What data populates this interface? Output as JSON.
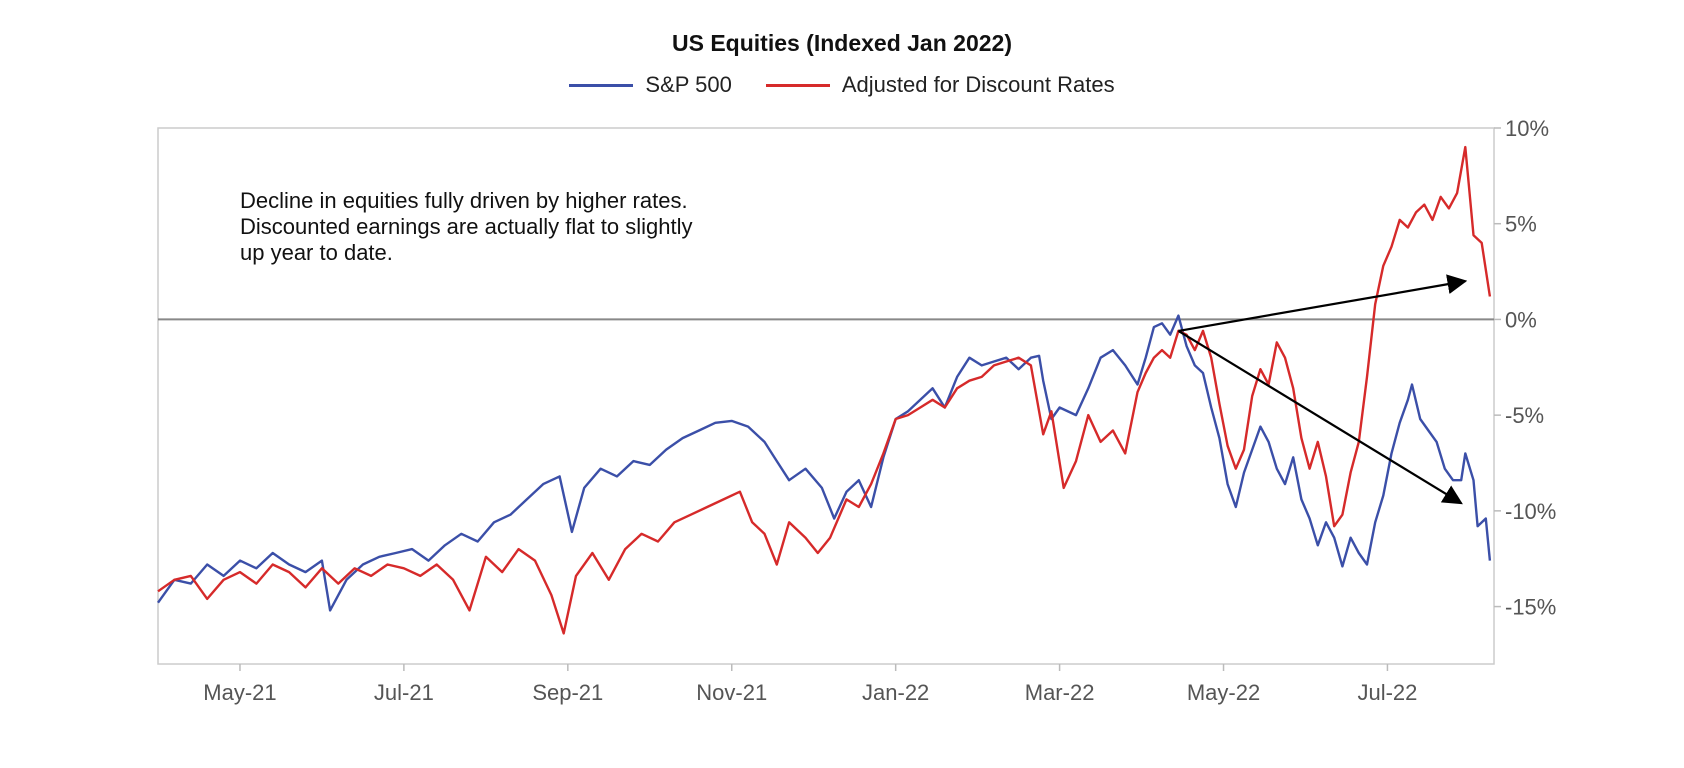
{
  "chart_data": {
    "type": "line",
    "title": "US Equities (Indexed Jan 2022)",
    "xlabel": "",
    "ylabel": "",
    "x_tick_labels": [
      "May-21",
      "Jul-21",
      "Sep-21",
      "Nov-21",
      "Jan-22",
      "Mar-22",
      "May-22",
      "Jul-22"
    ],
    "x_range_months": [
      -9.0,
      7.3
    ],
    "ylim": [
      -18,
      10
    ],
    "y_ticks": [
      10,
      5,
      0,
      -5,
      -10,
      -15
    ],
    "y_tick_labels": [
      "10%",
      "5%",
      "0%",
      "-5%",
      "-10%",
      "-15%"
    ],
    "y_axis_position": "right",
    "zero_line": 0,
    "grid": false,
    "legend_position": "top-center",
    "series": [
      {
        "name": "S&P 500",
        "color": "#3b4fa8",
        "points": [
          [
            -9.0,
            -14.8
          ],
          [
            -8.8,
            -13.6
          ],
          [
            -8.6,
            -13.8
          ],
          [
            -8.4,
            -12.8
          ],
          [
            -8.2,
            -13.4
          ],
          [
            -8.0,
            -12.6
          ],
          [
            -7.8,
            -13.0
          ],
          [
            -7.6,
            -12.2
          ],
          [
            -7.4,
            -12.8
          ],
          [
            -7.2,
            -13.2
          ],
          [
            -7.0,
            -12.6
          ],
          [
            -6.9,
            -15.2
          ],
          [
            -6.7,
            -13.6
          ],
          [
            -6.5,
            -12.8
          ],
          [
            -6.3,
            -12.4
          ],
          [
            -6.1,
            -12.2
          ],
          [
            -5.9,
            -12.0
          ],
          [
            -5.7,
            -12.6
          ],
          [
            -5.5,
            -11.8
          ],
          [
            -5.3,
            -11.2
          ],
          [
            -5.1,
            -11.6
          ],
          [
            -4.9,
            -10.6
          ],
          [
            -4.7,
            -10.2
          ],
          [
            -4.5,
            -9.4
          ],
          [
            -4.3,
            -8.6
          ],
          [
            -4.1,
            -8.2
          ],
          [
            -3.95,
            -11.1
          ],
          [
            -3.8,
            -8.8
          ],
          [
            -3.6,
            -7.8
          ],
          [
            -3.4,
            -8.2
          ],
          [
            -3.2,
            -7.4
          ],
          [
            -3.0,
            -7.6
          ],
          [
            -2.8,
            -6.8
          ],
          [
            -2.6,
            -6.2
          ],
          [
            -2.4,
            -5.8
          ],
          [
            -2.2,
            -5.4
          ],
          [
            -2.0,
            -5.3
          ],
          [
            -1.8,
            -5.6
          ],
          [
            -1.6,
            -6.4
          ],
          [
            -1.45,
            -7.4
          ],
          [
            -1.3,
            -8.4
          ],
          [
            -1.1,
            -7.8
          ],
          [
            -0.9,
            -8.8
          ],
          [
            -0.75,
            -10.4
          ],
          [
            -0.6,
            -9.0
          ],
          [
            -0.45,
            -8.4
          ],
          [
            -0.3,
            -9.8
          ],
          [
            -0.15,
            -7.2
          ],
          [
            0.0,
            -5.2
          ],
          [
            0.15,
            -4.8
          ],
          [
            0.3,
            -4.2
          ],
          [
            0.45,
            -3.6
          ],
          [
            0.6,
            -4.6
          ],
          [
            0.75,
            -3.0
          ],
          [
            0.9,
            -2.0
          ],
          [
            1.05,
            -2.4
          ],
          [
            1.2,
            -2.2
          ],
          [
            1.35,
            -2.0
          ],
          [
            1.5,
            -2.6
          ],
          [
            1.65,
            -2.0
          ],
          [
            1.75,
            -1.9
          ],
          [
            1.8,
            -3.2
          ],
          [
            1.9,
            -5.2
          ],
          [
            2.0,
            -4.6
          ],
          [
            2.2,
            -5.0
          ],
          [
            2.35,
            -3.6
          ],
          [
            2.5,
            -2.0
          ],
          [
            2.65,
            -1.6
          ],
          [
            2.8,
            -2.4
          ],
          [
            2.95,
            -3.4
          ],
          [
            3.05,
            -2.0
          ],
          [
            3.15,
            -0.4
          ],
          [
            3.25,
            -0.2
          ],
          [
            3.35,
            -0.8
          ],
          [
            3.45,
            0.2
          ],
          [
            3.55,
            -1.4
          ],
          [
            3.65,
            -2.4
          ],
          [
            3.75,
            -2.8
          ],
          [
            3.85,
            -4.6
          ],
          [
            3.95,
            -6.2
          ],
          [
            4.05,
            -8.6
          ],
          [
            4.15,
            -9.8
          ],
          [
            4.25,
            -8.0
          ],
          [
            4.35,
            -6.8
          ],
          [
            4.45,
            -5.6
          ],
          [
            4.55,
            -6.4
          ],
          [
            4.65,
            -7.8
          ],
          [
            4.75,
            -8.6
          ],
          [
            4.85,
            -7.2
          ],
          [
            4.95,
            -9.4
          ],
          [
            5.05,
            -10.4
          ],
          [
            5.15,
            -11.8
          ],
          [
            5.25,
            -10.6
          ],
          [
            5.35,
            -11.4
          ],
          [
            5.45,
            -12.9
          ],
          [
            5.55,
            -11.4
          ],
          [
            5.65,
            -12.2
          ],
          [
            5.75,
            -12.8
          ],
          [
            5.85,
            -10.6
          ],
          [
            5.95,
            -9.2
          ],
          [
            6.05,
            -7.0
          ],
          [
            6.15,
            -5.4
          ],
          [
            6.25,
            -4.2
          ],
          [
            6.3,
            -3.4
          ],
          [
            6.4,
            -5.2
          ],
          [
            6.5,
            -5.8
          ],
          [
            6.6,
            -6.4
          ],
          [
            6.7,
            -7.8
          ],
          [
            6.8,
            -8.4
          ],
          [
            6.9,
            -8.4
          ],
          [
            6.95,
            -7.0
          ],
          [
            7.05,
            -8.4
          ],
          [
            7.1,
            -10.8
          ],
          [
            7.2,
            -10.4
          ],
          [
            7.25,
            -12.6
          ]
        ]
      },
      {
        "name": "Adjusted for Discount Rates",
        "color": "#d62a2a",
        "points": [
          [
            -9.0,
            -14.2
          ],
          [
            -8.8,
            -13.6
          ],
          [
            -8.6,
            -13.4
          ],
          [
            -8.4,
            -14.6
          ],
          [
            -8.2,
            -13.6
          ],
          [
            -8.0,
            -13.2
          ],
          [
            -7.8,
            -13.8
          ],
          [
            -7.6,
            -12.8
          ],
          [
            -7.4,
            -13.2
          ],
          [
            -7.2,
            -14.0
          ],
          [
            -7.0,
            -13.0
          ],
          [
            -6.8,
            -13.8
          ],
          [
            -6.6,
            -13.0
          ],
          [
            -6.4,
            -13.4
          ],
          [
            -6.2,
            -12.8
          ],
          [
            -6.0,
            -13.0
          ],
          [
            -5.8,
            -13.4
          ],
          [
            -5.6,
            -12.8
          ],
          [
            -5.4,
            -13.6
          ],
          [
            -5.2,
            -15.2
          ],
          [
            -5.0,
            -12.4
          ],
          [
            -4.8,
            -13.2
          ],
          [
            -4.6,
            -12.0
          ],
          [
            -4.4,
            -12.6
          ],
          [
            -4.2,
            -14.4
          ],
          [
            -4.05,
            -16.4
          ],
          [
            -3.9,
            -13.4
          ],
          [
            -3.7,
            -12.2
          ],
          [
            -3.5,
            -13.6
          ],
          [
            -3.3,
            -12.0
          ],
          [
            -3.1,
            -11.2
          ],
          [
            -2.9,
            -11.6
          ],
          [
            -2.7,
            -10.6
          ],
          [
            -2.5,
            -10.2
          ],
          [
            -2.3,
            -9.8
          ],
          [
            -2.1,
            -9.4
          ],
          [
            -1.9,
            -9.0
          ],
          [
            -1.75,
            -10.6
          ],
          [
            -1.6,
            -11.2
          ],
          [
            -1.45,
            -12.8
          ],
          [
            -1.3,
            -10.6
          ],
          [
            -1.1,
            -11.4
          ],
          [
            -0.95,
            -12.2
          ],
          [
            -0.8,
            -11.4
          ],
          [
            -0.6,
            -9.4
          ],
          [
            -0.45,
            -9.8
          ],
          [
            -0.3,
            -8.6
          ],
          [
            -0.15,
            -7.0
          ],
          [
            0.0,
            -5.2
          ],
          [
            0.15,
            -5.0
          ],
          [
            0.3,
            -4.6
          ],
          [
            0.45,
            -4.2
          ],
          [
            0.6,
            -4.6
          ],
          [
            0.75,
            -3.6
          ],
          [
            0.9,
            -3.2
          ],
          [
            1.05,
            -3.0
          ],
          [
            1.2,
            -2.4
          ],
          [
            1.35,
            -2.2
          ],
          [
            1.5,
            -2.0
          ],
          [
            1.65,
            -2.4
          ],
          [
            1.8,
            -6.0
          ],
          [
            1.9,
            -4.8
          ],
          [
            2.05,
            -8.8
          ],
          [
            2.2,
            -7.4
          ],
          [
            2.35,
            -5.0
          ],
          [
            2.5,
            -6.4
          ],
          [
            2.65,
            -5.8
          ],
          [
            2.8,
            -7.0
          ],
          [
            2.95,
            -3.8
          ],
          [
            3.05,
            -2.8
          ],
          [
            3.15,
            -2.0
          ],
          [
            3.25,
            -1.6
          ],
          [
            3.35,
            -2.0
          ],
          [
            3.45,
            -0.6
          ],
          [
            3.55,
            -0.8
          ],
          [
            3.65,
            -1.6
          ],
          [
            3.75,
            -0.6
          ],
          [
            3.85,
            -2.0
          ],
          [
            3.95,
            -4.4
          ],
          [
            4.05,
            -6.6
          ],
          [
            4.15,
            -7.8
          ],
          [
            4.25,
            -6.8
          ],
          [
            4.35,
            -4.0
          ],
          [
            4.45,
            -2.6
          ],
          [
            4.55,
            -3.4
          ],
          [
            4.65,
            -1.2
          ],
          [
            4.75,
            -2.0
          ],
          [
            4.85,
            -3.6
          ],
          [
            4.95,
            -6.2
          ],
          [
            5.05,
            -7.8
          ],
          [
            5.15,
            -6.4
          ],
          [
            5.25,
            -8.2
          ],
          [
            5.35,
            -10.8
          ],
          [
            5.45,
            -10.2
          ],
          [
            5.55,
            -8.0
          ],
          [
            5.65,
            -6.4
          ],
          [
            5.75,
            -3.0
          ],
          [
            5.85,
            0.8
          ],
          [
            5.95,
            2.8
          ],
          [
            6.05,
            3.8
          ],
          [
            6.15,
            5.2
          ],
          [
            6.25,
            4.8
          ],
          [
            6.35,
            5.6
          ],
          [
            6.45,
            6.0
          ],
          [
            6.55,
            5.2
          ],
          [
            6.65,
            6.4
          ],
          [
            6.75,
            5.8
          ],
          [
            6.85,
            6.6
          ],
          [
            6.95,
            9.0
          ],
          [
            7.05,
            4.4
          ],
          [
            7.15,
            4.0
          ],
          [
            7.25,
            1.2
          ]
        ]
      }
    ],
    "annotation_lines": [
      "Decline in equities fully driven by higher rates.",
      "Discounted earnings are actually flat to slightly",
      "up year to date."
    ],
    "arrows": [
      {
        "name": "arrow-up",
        "from": [
          3.45,
          -0.6
        ],
        "to": [
          6.95,
          2.0
        ]
      },
      {
        "name": "arrow-down",
        "from": [
          3.45,
          -0.6
        ],
        "to": [
          6.9,
          -9.6
        ]
      }
    ]
  }
}
